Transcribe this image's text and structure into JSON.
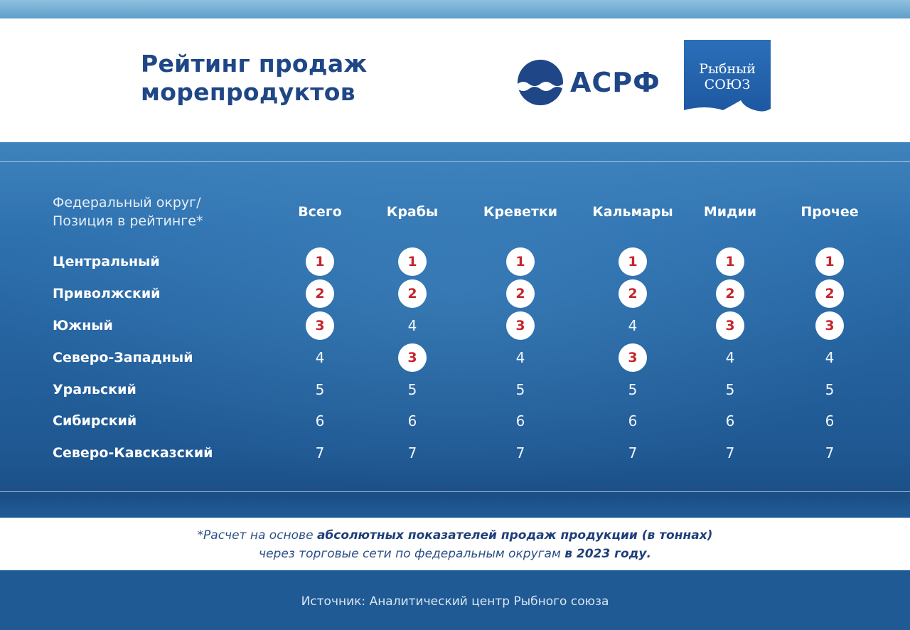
{
  "title": "Рейтинг продаж морепродуктов",
  "logos": {
    "asrf": "АСРФ",
    "rybny_soyuz_line1": "Рыбный",
    "rybny_soyuz_line2": "СОЮЗ"
  },
  "table": {
    "corner_label_line1": "Федеральный округ/",
    "corner_label_line2": "Позиция в рейтинге*",
    "columns": [
      "Всего",
      "Крабы",
      "Креветки",
      "Кальмары",
      "Мидии",
      "Прочее"
    ],
    "rows": [
      {
        "name": "Центральный",
        "values": [
          "1",
          "1",
          "1",
          "1",
          "1",
          "1"
        ]
      },
      {
        "name": "Приволжский",
        "values": [
          "2",
          "2",
          "2",
          "2",
          "2",
          "2"
        ]
      },
      {
        "name": "Южный",
        "values": [
          "3",
          "4",
          "3",
          "4",
          "3",
          "3"
        ]
      },
      {
        "name": "Северо-Западный",
        "values": [
          "4",
          "3",
          "4",
          "3",
          "4",
          "4"
        ]
      },
      {
        "name": "Уральский",
        "values": [
          "5",
          "5",
          "5",
          "5",
          "5",
          "5"
        ]
      },
      {
        "name": "Сибирский",
        "values": [
          "6",
          "6",
          "6",
          "6",
          "6",
          "6"
        ]
      },
      {
        "name": "Северо-Кавсказский",
        "values": [
          "7",
          "7",
          "7",
          "7",
          "7",
          "7"
        ]
      }
    ]
  },
  "note": {
    "line1_prefix": "*Расчет на основе ",
    "line1_bold": "абсолютных показателей продаж продукции (в тоннах)",
    "line2_prefix": "через торговые сети по федеральным округам ",
    "line2_bold": "в 2023 году."
  },
  "source": "Источник: Аналитический центр Рыбного союза",
  "colors": {
    "brand_blue": "#1f4787",
    "highlight_red": "#c5242c"
  }
}
